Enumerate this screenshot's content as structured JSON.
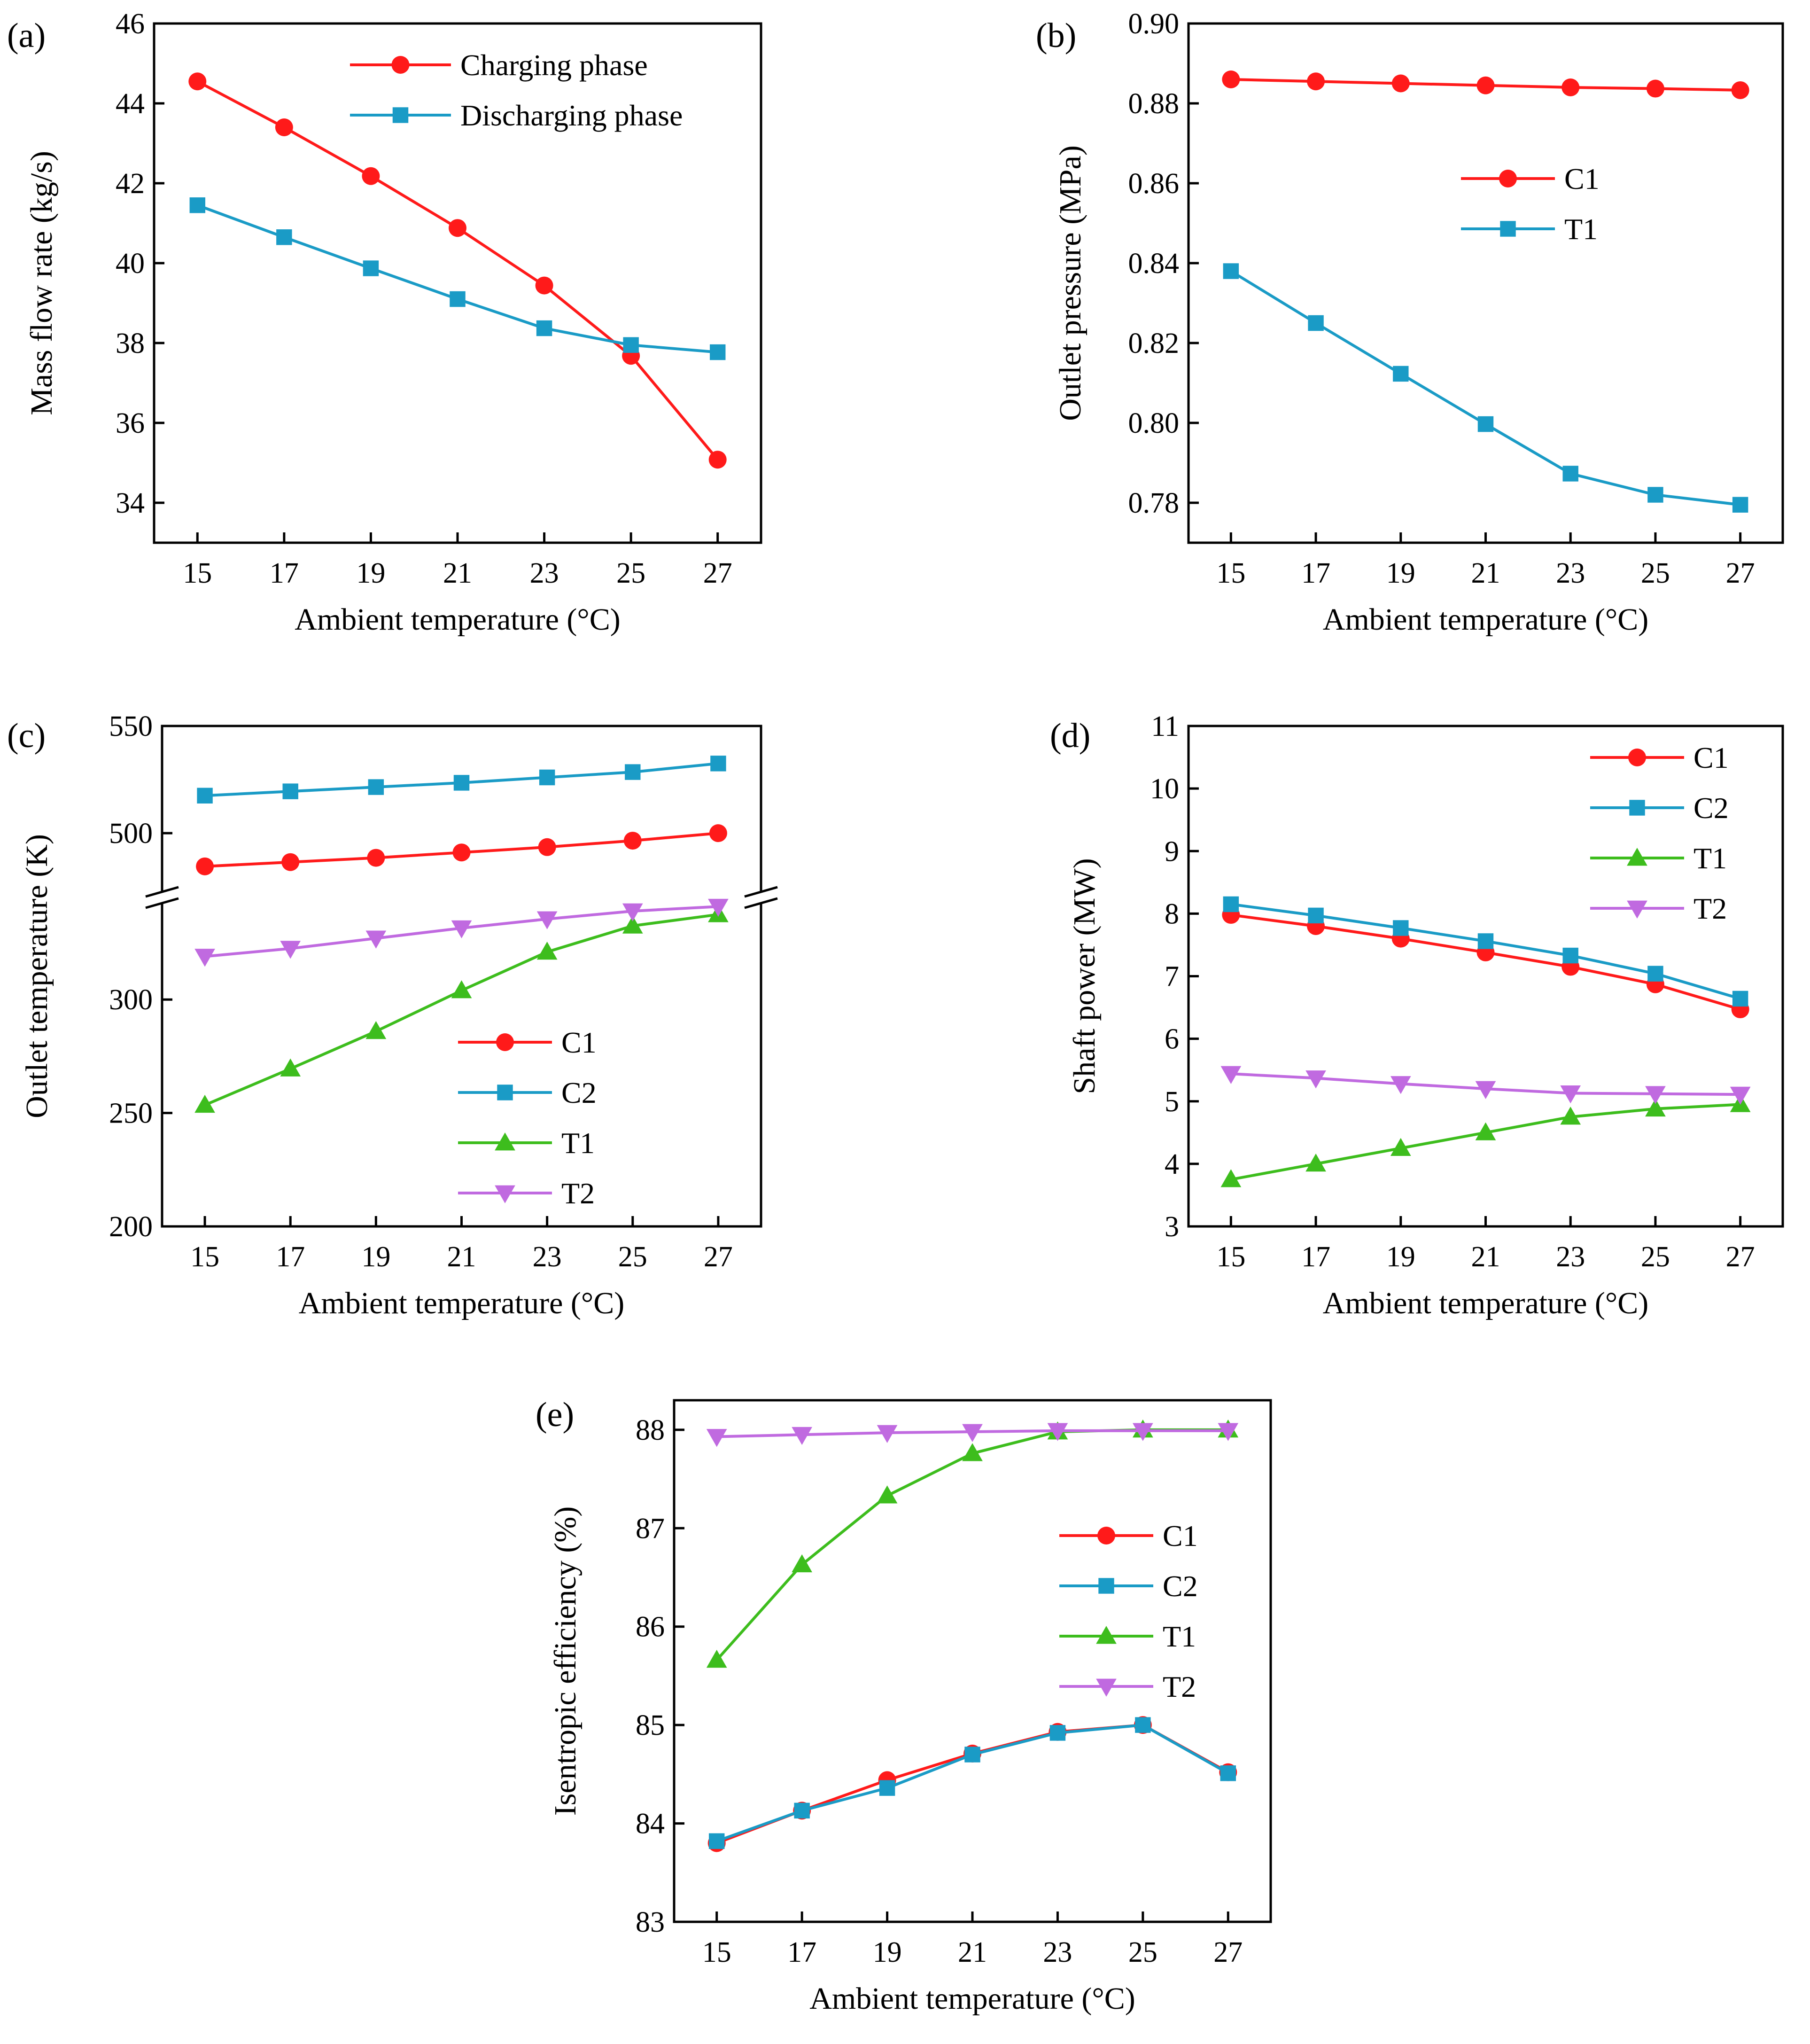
{
  "chart_data": [
    {
      "id": "a",
      "type": "line",
      "panel_label": "(a)",
      "xlabel": "Ambient temperature (°C)",
      "ylabel": "Mass flow rate (kg/s)",
      "categories": [
        "15",
        "17",
        "19",
        "21",
        "23",
        "25",
        "27"
      ],
      "x": [
        15,
        17,
        19,
        21,
        23,
        25,
        27
      ],
      "xlim": [
        14,
        28
      ],
      "ylim": [
        33,
        46
      ],
      "yticks": [
        34,
        36,
        38,
        40,
        42,
        44,
        46
      ],
      "series": [
        {
          "name": "Charging phase",
          "color": "#ff1a1a",
          "marker": "circle",
          "values": [
            44.55,
            43.4,
            42.18,
            40.88,
            39.44,
            37.68,
            35.08
          ]
        },
        {
          "name": "Discharging phase",
          "color": "#1a9bc6",
          "marker": "square",
          "values": [
            41.45,
            40.65,
            39.87,
            39.1,
            38.37,
            37.95,
            37.77
          ]
        }
      ]
    },
    {
      "id": "b",
      "type": "line",
      "panel_label": "(b)",
      "xlabel": "Ambient temperature  (°C)",
      "ylabel": "Outlet pressure (MPa)",
      "categories": [
        "15",
        "17",
        "19",
        "21",
        "23",
        "25",
        "27"
      ],
      "x": [
        15,
        17,
        19,
        21,
        23,
        25,
        27
      ],
      "xlim": [
        14,
        28
      ],
      "ylim": [
        0.77,
        0.9
      ],
      "yticks": [
        "0.78",
        "0.80",
        "0.82",
        "0.84",
        "0.86",
        "0.88",
        "0.90"
      ],
      "series": [
        {
          "name": "C1",
          "color": "#ff1a1a",
          "marker": "circle",
          "values": [
            0.886,
            0.8855,
            0.885,
            0.8845,
            0.884,
            0.8837,
            0.8833
          ]
        },
        {
          "name": "T1",
          "color": "#1a9bc6",
          "marker": "square",
          "values": [
            0.838,
            0.825,
            0.8123,
            0.7997,
            0.7873,
            0.782,
            0.7795
          ]
        }
      ]
    },
    {
      "id": "c",
      "type": "line",
      "panel_label": "(c)",
      "xlabel": "Ambient temperature (°C)",
      "ylabel": "Outlet temperature (K)",
      "categories": [
        "15",
        "17",
        "19",
        "21",
        "23",
        "25",
        "27"
      ],
      "x": [
        15,
        17,
        19,
        21,
        23,
        25,
        27
      ],
      "xlim": [
        14,
        28
      ],
      "ylim_lower": [
        200,
        345
      ],
      "ylim_upper": [
        470,
        550
      ],
      "axis_break": true,
      "yticks": [
        200,
        250,
        300,
        500,
        550
      ],
      "series": [
        {
          "name": "C1",
          "color": "#ff1a1a",
          "marker": "circle",
          "values": [
            484.5,
            486.5,
            488.5,
            491,
            493.5,
            496.5,
            500
          ]
        },
        {
          "name": "C2",
          "color": "#1a9bc6",
          "marker": "square",
          "values": [
            517.5,
            519.5,
            521.5,
            523.5,
            526,
            528.5,
            532.5
          ]
        },
        {
          "name": "T1",
          "color": "#3dbd1d",
          "marker": "triangle-up",
          "values": [
            253.5,
            269.5,
            286,
            304,
            321,
            332.5,
            337.5
          ]
        },
        {
          "name": "T2",
          "color": "#c06ae0",
          "marker": "triangle-down",
          "values": [
            319,
            322.5,
            327,
            331.5,
            335.5,
            339,
            341
          ]
        }
      ]
    },
    {
      "id": "d",
      "type": "line",
      "panel_label": "(d)",
      "xlabel": "Ambient temperature (°C)",
      "ylabel": "Shaft power (MW)",
      "categories": [
        "15",
        "17",
        "19",
        "21",
        "23",
        "25",
        "27"
      ],
      "x": [
        15,
        17,
        19,
        21,
        23,
        25,
        27
      ],
      "xlim": [
        14,
        28
      ],
      "ylim": [
        3,
        11
      ],
      "yticks": [
        3,
        4,
        5,
        6,
        7,
        8,
        9,
        10,
        11
      ],
      "series": [
        {
          "name": "C1",
          "color": "#ff1a1a",
          "marker": "circle",
          "values": [
            7.98,
            7.8,
            7.6,
            7.38,
            7.15,
            6.87,
            6.47
          ]
        },
        {
          "name": "C2",
          "color": "#1a9bc6",
          "marker": "square",
          "values": [
            8.15,
            7.97,
            7.77,
            7.56,
            7.33,
            7.04,
            6.64
          ]
        },
        {
          "name": "T1",
          "color": "#3dbd1d",
          "marker": "triangle-up",
          "values": [
            3.75,
            4.0,
            4.25,
            4.5,
            4.75,
            4.88,
            4.95
          ]
        },
        {
          "name": "T2",
          "color": "#c06ae0",
          "marker": "triangle-down",
          "values": [
            5.44,
            5.37,
            5.28,
            5.2,
            5.13,
            5.12,
            5.11
          ]
        }
      ]
    },
    {
      "id": "e",
      "type": "line",
      "panel_label": "(e)",
      "xlabel": "Ambient temperature (°C)",
      "ylabel": "Isentropic efficiency (%)",
      "categories": [
        "15",
        "17",
        "19",
        "21",
        "23",
        "25",
        "27"
      ],
      "x": [
        15,
        17,
        19,
        21,
        23,
        25,
        27
      ],
      "xlim": [
        14,
        28
      ],
      "ylim": [
        83,
        88.3
      ],
      "yticks": [
        83,
        84,
        85,
        86,
        87,
        88
      ],
      "series": [
        {
          "name": "C1",
          "color": "#ff1a1a",
          "marker": "circle",
          "values": [
            83.8,
            84.13,
            84.44,
            84.71,
            84.93,
            85.0,
            84.52
          ]
        },
        {
          "name": "C2",
          "color": "#1a9bc6",
          "marker": "square",
          "values": [
            83.82,
            84.13,
            84.36,
            84.7,
            84.92,
            85.0,
            84.51
          ]
        },
        {
          "name": "T1",
          "color": "#3dbd1d",
          "marker": "triangle-up",
          "values": [
            85.66,
            86.63,
            87.33,
            87.76,
            87.98,
            88.0,
            88.0
          ]
        },
        {
          "name": "T2",
          "color": "#c06ae0",
          "marker": "triangle-down",
          "values": [
            87.93,
            87.95,
            87.97,
            87.98,
            87.99,
            87.99,
            87.99
          ]
        }
      ]
    }
  ]
}
